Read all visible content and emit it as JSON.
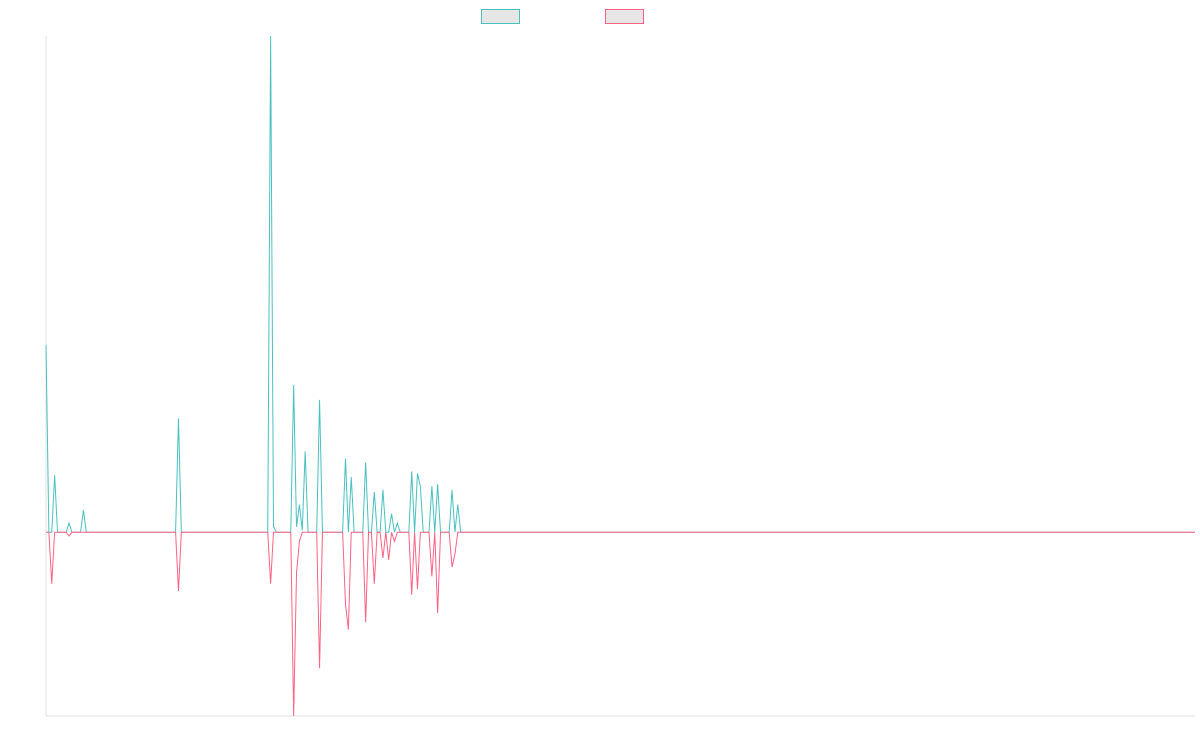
{
  "chart_data": {
    "type": "line",
    "title": "",
    "xlabel": "",
    "ylabel": "",
    "grid": false,
    "legend_position": "top-center",
    "ylim": [
      -100,
      270
    ],
    "x_count": 400,
    "series": [
      {
        "name": "",
        "color": "#4bc0c0",
        "points": [
          [
            0,
            102
          ],
          [
            1,
            0
          ],
          [
            2,
            0
          ],
          [
            3,
            31
          ],
          [
            4,
            0
          ],
          [
            5,
            0
          ],
          [
            6,
            0
          ],
          [
            7,
            0
          ],
          [
            8,
            5
          ],
          [
            9,
            0
          ],
          [
            10,
            0
          ],
          [
            11,
            0
          ],
          [
            12,
            0
          ],
          [
            13,
            12
          ],
          [
            14,
            0
          ],
          [
            15,
            0
          ],
          [
            16,
            0
          ],
          [
            45,
            0
          ],
          [
            46,
            62
          ],
          [
            47,
            0
          ],
          [
            48,
            0
          ],
          [
            77,
            0
          ],
          [
            78,
            270
          ],
          [
            79,
            3
          ],
          [
            80,
            0
          ],
          [
            81,
            0
          ],
          [
            85,
            0
          ],
          [
            86,
            80
          ],
          [
            87,
            3
          ],
          [
            88,
            15
          ],
          [
            89,
            1
          ],
          [
            90,
            44
          ],
          [
            91,
            0
          ],
          [
            92,
            0
          ],
          [
            93,
            0
          ],
          [
            94,
            0
          ],
          [
            95,
            72
          ],
          [
            96,
            0
          ],
          [
            97,
            0
          ],
          [
            103,
            0
          ],
          [
            104,
            40
          ],
          [
            105,
            0
          ],
          [
            106,
            30
          ],
          [
            107,
            0
          ],
          [
            108,
            0
          ],
          [
            110,
            0
          ],
          [
            111,
            38
          ],
          [
            112,
            0
          ],
          [
            113,
            0
          ],
          [
            114,
            22
          ],
          [
            115,
            0
          ],
          [
            116,
            0
          ],
          [
            117,
            23
          ],
          [
            118,
            0
          ],
          [
            119,
            0
          ],
          [
            120,
            10
          ],
          [
            121,
            0
          ],
          [
            122,
            5
          ],
          [
            123,
            0
          ],
          [
            124,
            0
          ],
          [
            125,
            0
          ],
          [
            126,
            0
          ],
          [
            127,
            33
          ],
          [
            128,
            0
          ],
          [
            129,
            32
          ],
          [
            130,
            25
          ],
          [
            131,
            0
          ],
          [
            132,
            0
          ],
          [
            133,
            0
          ],
          [
            134,
            25
          ],
          [
            135,
            0
          ],
          [
            136,
            26
          ],
          [
            137,
            0
          ],
          [
            138,
            0
          ],
          [
            139,
            0
          ],
          [
            140,
            0
          ],
          [
            141,
            23
          ],
          [
            142,
            0
          ],
          [
            143,
            15
          ],
          [
            144,
            0
          ],
          [
            145,
            0
          ],
          [
            399,
            0
          ]
        ]
      },
      {
        "name": "",
        "color": "#ff6384",
        "points": [
          [
            0,
            0
          ],
          [
            1,
            0
          ],
          [
            2,
            -28
          ],
          [
            3,
            0
          ],
          [
            4,
            0
          ],
          [
            5,
            0
          ],
          [
            6,
            0
          ],
          [
            7,
            0
          ],
          [
            8,
            -2
          ],
          [
            9,
            0
          ],
          [
            10,
            0
          ],
          [
            45,
            0
          ],
          [
            46,
            -32
          ],
          [
            47,
            0
          ],
          [
            48,
            0
          ],
          [
            77,
            0
          ],
          [
            78,
            -28
          ],
          [
            79,
            0
          ],
          [
            80,
            0
          ],
          [
            85,
            0
          ],
          [
            86,
            -100
          ],
          [
            87,
            -22
          ],
          [
            88,
            -5
          ],
          [
            89,
            0
          ],
          [
            90,
            0
          ],
          [
            94,
            0
          ],
          [
            95,
            -74
          ],
          [
            96,
            0
          ],
          [
            97,
            0
          ],
          [
            103,
            0
          ],
          [
            104,
            -39
          ],
          [
            105,
            -53
          ],
          [
            106,
            0
          ],
          [
            107,
            0
          ],
          [
            110,
            0
          ],
          [
            111,
            -49
          ],
          [
            112,
            0
          ],
          [
            113,
            0
          ],
          [
            114,
            -28
          ],
          [
            115,
            0
          ],
          [
            116,
            0
          ],
          [
            117,
            -14
          ],
          [
            118,
            0
          ],
          [
            119,
            -15
          ],
          [
            120,
            0
          ],
          [
            121,
            -5
          ],
          [
            122,
            0
          ],
          [
            123,
            0
          ],
          [
            126,
            0
          ],
          [
            127,
            -34
          ],
          [
            128,
            0
          ],
          [
            129,
            -31
          ],
          [
            130,
            0
          ],
          [
            131,
            0
          ],
          [
            133,
            0
          ],
          [
            134,
            -24
          ],
          [
            135,
            0
          ],
          [
            136,
            -44
          ],
          [
            137,
            0
          ],
          [
            138,
            0
          ],
          [
            140,
            0
          ],
          [
            141,
            -19
          ],
          [
            142,
            -12
          ],
          [
            143,
            0
          ],
          [
            144,
            0
          ],
          [
            399,
            0
          ]
        ]
      }
    ]
  }
}
